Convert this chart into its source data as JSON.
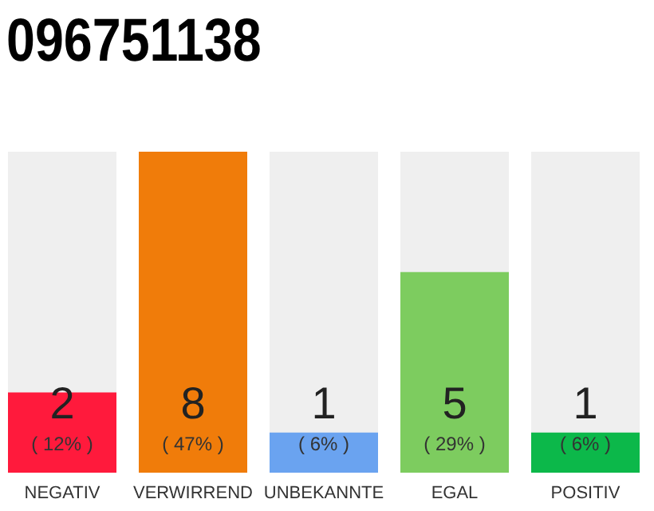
{
  "chart_data": {
    "type": "bar",
    "title": "096751138",
    "categories": [
      "NEGATIV",
      "VERWIRREND",
      "UNBEKANNTE",
      "EGAL",
      "POSITIV"
    ],
    "values": [
      2,
      8,
      1,
      5,
      1
    ],
    "colors": [
      "#ff1a3c",
      "#f07c0a",
      "#6aa3f0",
      "#7dcc5f",
      "#0cb84a"
    ],
    "ylim": [
      0,
      8
    ],
    "tick_labels": "x",
    "data_labels": true,
    "annotations": [
      "( 12% )",
      "( 47% )",
      "( 6% )",
      "( 29% )",
      "( 6% )"
    ]
  }
}
